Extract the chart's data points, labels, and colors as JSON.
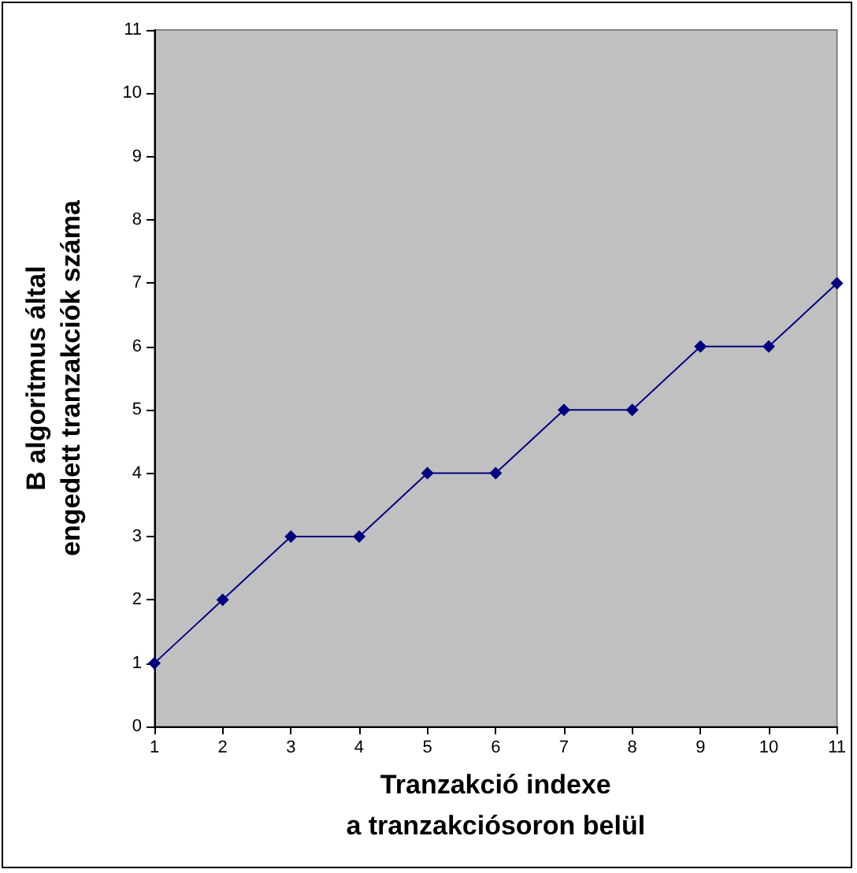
{
  "chart_data": {
    "type": "line",
    "xlabel": "Tranzakció indexe\na tranzakciósoron belül",
    "ylabel": "B algoritmus által\nengedett tranzakciók száma",
    "x": [
      1,
      2,
      3,
      4,
      5,
      6,
      7,
      8,
      9,
      10,
      11
    ],
    "series": [
      {
        "color": "#000080",
        "values": [
          1,
          2,
          3,
          3,
          4,
          4,
          5,
          5,
          6,
          6,
          7
        ]
      }
    ],
    "xlim": [
      1,
      11
    ],
    "xticks": [
      1,
      2,
      3,
      4,
      5,
      6,
      7,
      8,
      9,
      10,
      11
    ],
    "ylim": [
      0,
      11
    ],
    "yticks": [
      0,
      1,
      2,
      3,
      4,
      5,
      6,
      7,
      8,
      9,
      10,
      11
    ],
    "marker": "diamond",
    "line_style": "solid"
  }
}
